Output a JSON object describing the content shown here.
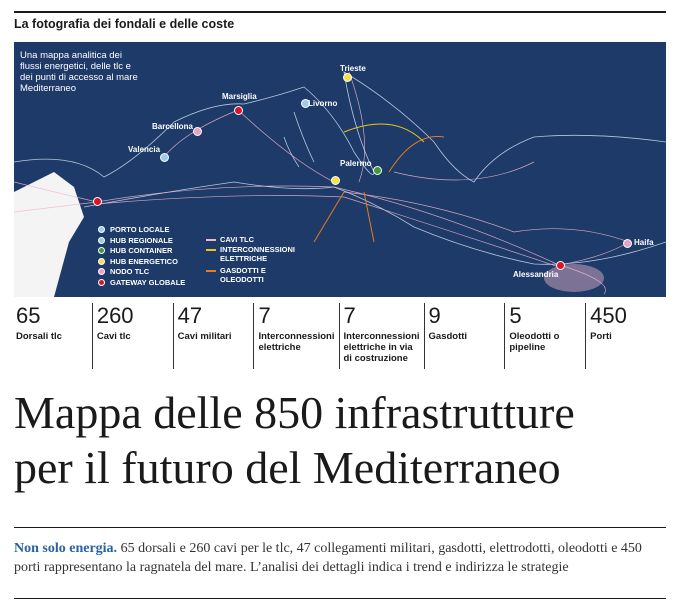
{
  "header": {
    "kicker": "La fotografia dei fondali e delle coste"
  },
  "map": {
    "intro": "Una mappa analitica dei flussi energetici, delle tlc e dei punti di accesso al mare Mediterraneo",
    "cities": [
      {
        "name": "Trieste",
        "color": "#f5e04a"
      },
      {
        "name": "Marsiglia",
        "color": "#d9142b"
      },
      {
        "name": "Livorno",
        "color": "#9ecbe8"
      },
      {
        "name": "Barcellona",
        "color": "#e6a3c3"
      },
      {
        "name": "Valencia",
        "color": "#9ecbe8"
      },
      {
        "name": "Palermo",
        "color": "#f5e04a"
      },
      {
        "name": "Haifa",
        "color": "#e6a3c3"
      },
      {
        "name": "Alessandria",
        "color": "#d9142b"
      }
    ],
    "legend_nodes": [
      {
        "label": "PORTO LOCALE",
        "color": "#9ecbe8"
      },
      {
        "label": "HUB REGIONALE",
        "color": "#9ecbe8"
      },
      {
        "label": "HUB CONTAINER",
        "color": "#3f9a3a"
      },
      {
        "label": "HUB ENERGETICO",
        "color": "#f5e04a"
      },
      {
        "label": "NODO TLC",
        "color": "#e6a3c3"
      },
      {
        "label": "GATEWAY GLOBALE",
        "color": "#d9142b"
      }
    ],
    "legend_lines": [
      {
        "label": "CAVI TLC",
        "color": "#f2b8cf"
      },
      {
        "label": "INTERCONNESSIONI ELETTRICHE",
        "color": "#e8c520"
      },
      {
        "label": "GASDOTTI E OLEODOTTI",
        "color": "#e87a1f"
      }
    ]
  },
  "stats": [
    {
      "value": 65,
      "label": "Dorsali tlc"
    },
    {
      "value": 260,
      "label": "Cavi tlc"
    },
    {
      "value": 47,
      "label": "Cavi militari"
    },
    {
      "value": 7,
      "label": "Interconnessioni elettriche"
    },
    {
      "value": 7,
      "label": "Interconnessioni elettriche in via di costruzione"
    },
    {
      "value": 9,
      "label": "Gasdotti"
    },
    {
      "value": 5,
      "label": "Oleodotti o pipeline"
    },
    {
      "value": 450,
      "label": "Porti"
    }
  ],
  "headline": {
    "lines": [
      "Mappa delle 850 infrastrutture",
      "per il futuro del Mediterraneo"
    ]
  },
  "description": {
    "lead": "Non solo energia.",
    "text": "65 dorsali e 260 cavi per le tlc, 47 collegamenti militari, gasdotti, elettrodotti, oleodotti e 450 porti rappresentano la ragnatela del mare. L’analisi dei dettagli indica i trend e indirizza le strategie"
  }
}
